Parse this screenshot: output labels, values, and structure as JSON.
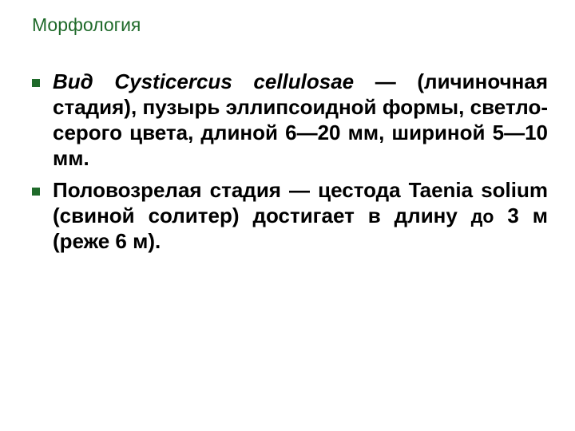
{
  "slide": {
    "title": "Морфология",
    "title_color": "#1f6a2a",
    "bullet_color": "#1f6a2a",
    "text_color": "#000000",
    "background": "#ffffff",
    "items": [
      {
        "prefix_italic": "Вид Cysticercus cellulosae ",
        "rest": "— (личиночная стадия), пузырь эллипсоидной формы, светло-серого цвета, длиной 6—20 мм, шириной 5—10 мм."
      },
      {
        "prefix_italic": "",
        "rest": "Половозрелая стадия — цестода Taenia solium (свиной солитер) достигает в длину до 3 м (реже 6 м)."
      }
    ]
  }
}
